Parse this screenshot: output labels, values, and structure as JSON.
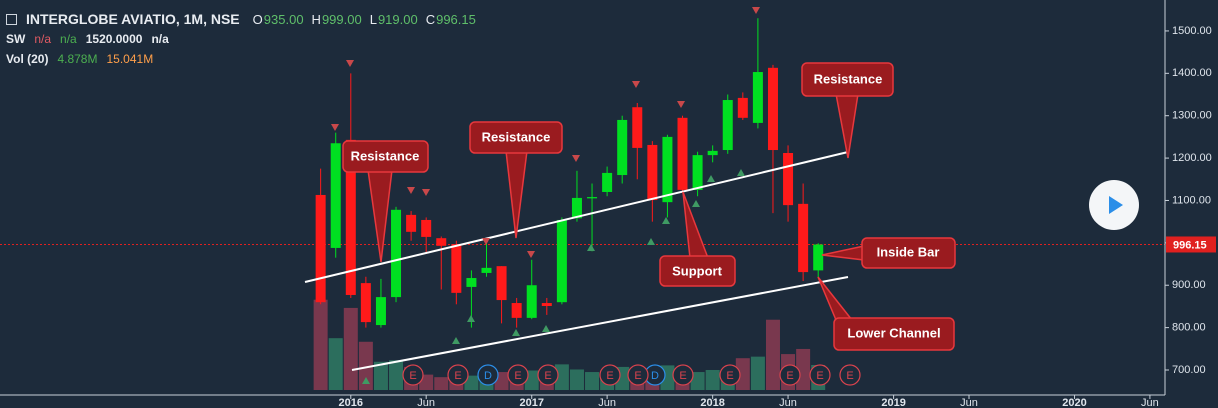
{
  "chart_data": {
    "type": "candlestick",
    "title": "INTERGLOBE AVIATIO, 1M, NSE",
    "ohlc_header": [
      {
        "key": "O",
        "value": "935.00"
      },
      {
        "key": "H",
        "value": "999.00"
      },
      {
        "key": "L",
        "value": "919.00"
      },
      {
        "key": "C",
        "value": "996.15"
      }
    ],
    "indicators": [
      {
        "name": "SW",
        "values": [
          "n/a",
          "n/a",
          "1520.0000",
          "n/a"
        ],
        "colors": [
          "#e05a63",
          "#4caf50",
          "#e8ecf1",
          "#e8ecf1"
        ]
      },
      {
        "name": "Vol (20)",
        "values": [
          "4.878M",
          "15.041M"
        ],
        "colors": [
          "#4caf50",
          "#ff9f4a"
        ]
      }
    ],
    "x": [
      "2015-11",
      "2015-12",
      "2016-01",
      "2016-02",
      "2016-03",
      "2016-04",
      "2016-05",
      "2016-06",
      "2016-07",
      "2016-08",
      "2016-09",
      "2016-10",
      "2016-11",
      "2016-12",
      "2017-01",
      "2017-02",
      "2017-03",
      "2017-04",
      "2017-05",
      "2017-06",
      "2017-07",
      "2017-08",
      "2017-09",
      "2017-10",
      "2017-11",
      "2017-12",
      "2018-01",
      "2018-02",
      "2018-03",
      "2018-04",
      "2018-05",
      "2018-06",
      "2018-07",
      "2018-08"
    ],
    "open": [
      1113,
      988,
      1243,
      905,
      806,
      872,
      1066,
      1054,
      1011,
      997,
      896,
      929,
      945,
      858,
      823,
      858,
      860,
      1058,
      1105,
      1120,
      1160,
      1320,
      1231,
      1096,
      1295,
      1125,
      1207,
      1219,
      1342,
      1283,
      1413,
      1212,
      1092,
      935
    ],
    "high": [
      1175,
      1260,
      1400,
      920,
      915,
      1085,
      1075,
      1060,
      1015,
      1005,
      935,
      1000,
      945,
      870,
      960,
      870,
      1060,
      1170,
      1140,
      1180,
      1300,
      1330,
      1240,
      1255,
      1300,
      1215,
      1230,
      1350,
      1355,
      1530,
      1420,
      1230,
      1140,
      999
    ],
    "low": [
      855,
      965,
      870,
      800,
      800,
      860,
      1005,
      975,
      890,
      855,
      800,
      920,
      810,
      800,
      820,
      830,
      855,
      1050,
      980,
      1110,
      1140,
      1150,
      1050,
      1060,
      1120,
      1110,
      1190,
      1210,
      1290,
      1270,
      1070,
      1050,
      910,
      919
    ],
    "close": [
      860,
      1235,
      877,
      813,
      872,
      1078,
      1026,
      1014,
      993,
      882,
      917,
      941,
      865,
      823,
      900,
      851,
      1054,
      1106,
      1108,
      1165,
      1290,
      1224,
      1101,
      1250,
      1125,
      1207,
      1217,
      1337,
      1295,
      1403,
      1219,
      1089,
      931,
      996.15
    ],
    "volume": [
      17.6,
      10.1,
      16.0,
      9.4,
      5.5,
      5.8,
      4.5,
      3.0,
      2.5,
      3.5,
      2.8,
      3.2,
      3.5,
      4.0,
      3.8,
      4.2,
      5.0,
      4.0,
      3.5,
      3.8,
      4.5,
      3.0,
      4.2,
      4.8,
      3.0,
      3.5,
      3.9,
      4.0,
      6.2,
      6.5,
      13.7,
      7.0,
      8.0,
      4.878
    ],
    "up_color": "#00e021",
    "down_color": "#ff1a1a",
    "volume_up_color": "#2f7a64",
    "volume_down_color": "#8a3b52",
    "xlim": [
      "2014-02",
      "2020-07"
    ],
    "ylim": [
      641,
      1573
    ],
    "xticks": [
      {
        "value": "2016-01",
        "label": "2016"
      },
      {
        "value": "2016-06",
        "label": "Jun"
      },
      {
        "value": "2017-01",
        "label": "2017"
      },
      {
        "value": "2017-06",
        "label": "Jun"
      },
      {
        "value": "2018-01",
        "label": "2018"
      },
      {
        "value": "2018-06",
        "label": "Jun"
      },
      {
        "value": "2019-01",
        "label": "2019"
      },
      {
        "value": "2019-06",
        "label": "Jun"
      },
      {
        "value": "2020-01",
        "label": "2020"
      },
      {
        "value": "2020-06",
        "label": "Jun"
      }
    ],
    "yticks": [
      {
        "value": 700,
        "label": "700.00"
      },
      {
        "value": 800,
        "label": "800.00"
      },
      {
        "value": 900,
        "label": "900.00"
      },
      {
        "value": 1000,
        "label": "1000.00"
      },
      {
        "value": 1100,
        "label": "1100.00"
      },
      {
        "value": 1200,
        "label": "1200.00"
      },
      {
        "value": 1300,
        "label": "1300.00"
      },
      {
        "value": 1400,
        "label": "1400.00"
      },
      {
        "value": 1500,
        "label": "1500.00"
      }
    ],
    "annotations": [
      "Resistance",
      "Resistance",
      "Resistance",
      "Support",
      "Inside Bar",
      "Lower Channel"
    ],
    "events": [
      "E",
      "E",
      "D",
      "E",
      "E",
      "E",
      "E",
      "D",
      "E",
      "E",
      "E",
      "E",
      "E"
    ]
  }
}
